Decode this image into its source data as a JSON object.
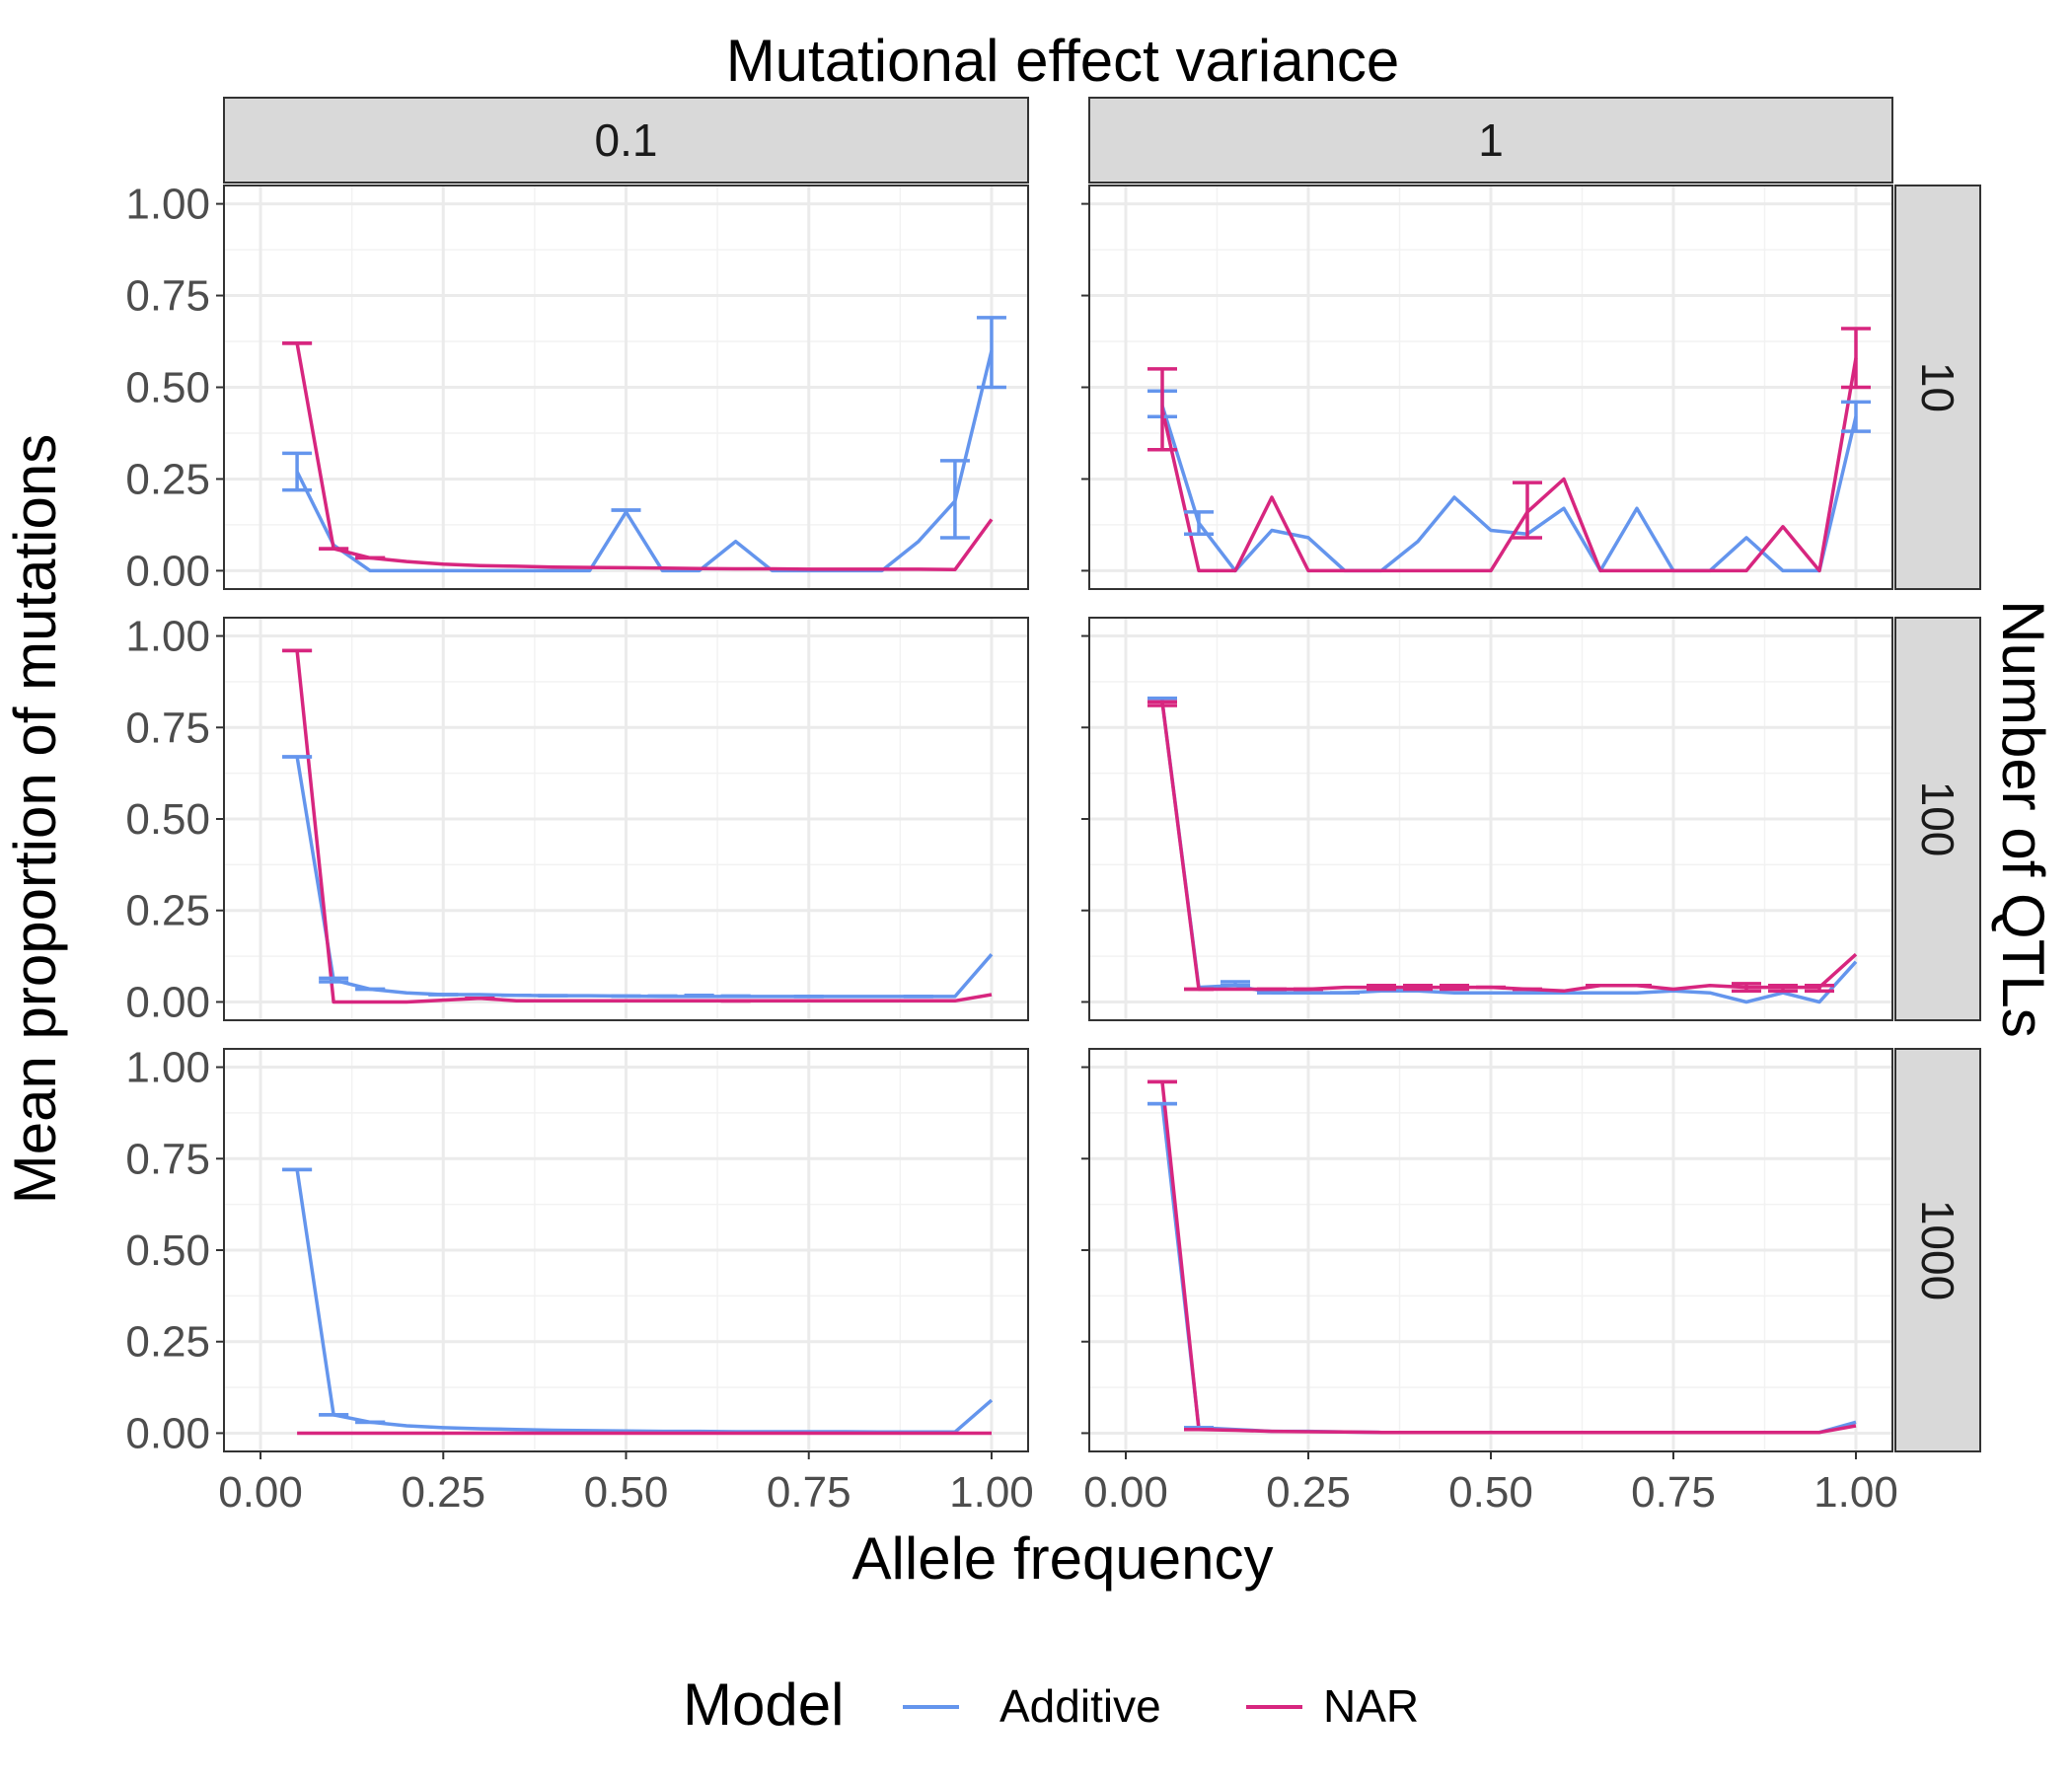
{
  "chart_data": {
    "type": "line",
    "title": "Mutational effect variance",
    "xlabel": "Allele frequency",
    "ylabel": "Mean proportion of mutations",
    "facet_row_label": "Number of QTLs",
    "col_strips": [
      "0.1",
      "1"
    ],
    "row_strips": [
      "10",
      "100",
      "1000"
    ],
    "xlim": [
      0,
      1
    ],
    "ylim": [
      0,
      1
    ],
    "x_ticks": [
      "0.00",
      "0.25",
      "0.50",
      "0.75",
      "1.00"
    ],
    "y_ticks": [
      "0.00",
      "0.25",
      "0.50",
      "0.75",
      "1.00"
    ],
    "grid": true,
    "legend": {
      "title": "Model",
      "position": "bottom",
      "entries": [
        {
          "name": "Additive",
          "color": "#6495ED"
        },
        {
          "name": "NAR",
          "color": "#D7267F"
        }
      ]
    },
    "panels": [
      {
        "col": "0.1",
        "row": "10",
        "series": [
          {
            "name": "Additive",
            "color": "#6495ED",
            "x": [
              0.05,
              0.1,
              0.15,
              0.2,
              0.25,
              0.3,
              0.35,
              0.4,
              0.45,
              0.5,
              0.55,
              0.6,
              0.65,
              0.7,
              0.75,
              0.8,
              0.85,
              0.9,
              0.95,
              1.0
            ],
            "y": [
              0.27,
              0.07,
              0.0,
              0.0,
              0.0,
              0.0,
              0.0,
              0.0,
              0.0,
              0.16,
              0.0,
              0.0,
              0.08,
              0.0,
              0.0,
              0.0,
              0.0,
              0.08,
              0.19,
              0.6
            ]
          },
          {
            "name": "NAR",
            "color": "#D7267F",
            "x": [
              0.05,
              0.1,
              0.15,
              0.2,
              0.25,
              0.3,
              0.35,
              0.4,
              0.45,
              0.5,
              0.55,
              0.6,
              0.65,
              0.7,
              0.75,
              0.8,
              0.85,
              0.9,
              0.95,
              1.0
            ],
            "y": [
              0.62,
              0.06,
              0.035,
              0.025,
              0.018,
              0.014,
              0.012,
              0.01,
              0.009,
              0.008,
              0.007,
              0.006,
              0.005,
              0.005,
              0.004,
              0.004,
              0.004,
              0.004,
              0.003,
              0.14
            ]
          }
        ],
        "errorbars": [
          {
            "color": "#6495ED",
            "x": 0.05,
            "lo": 0.22,
            "hi": 0.32
          },
          {
            "color": "#6495ED",
            "x": 0.5,
            "lo": 0.165,
            "hi": 0.165
          },
          {
            "color": "#6495ED",
            "x": 0.95,
            "lo": 0.09,
            "hi": 0.3
          },
          {
            "color": "#6495ED",
            "x": 1.0,
            "lo": 0.5,
            "hi": 0.69
          },
          {
            "color": "#D7267F",
            "x": 0.05,
            "lo": 0.62,
            "hi": 0.62
          },
          {
            "color": "#D7267F",
            "x": 0.1,
            "lo": 0.06,
            "hi": 0.06
          },
          {
            "color": "#D7267F",
            "x": 0.15,
            "lo": 0.035,
            "hi": 0.035
          }
        ]
      },
      {
        "col": "1",
        "row": "10",
        "series": [
          {
            "name": "Additive",
            "color": "#6495ED",
            "x": [
              0.05,
              0.1,
              0.15,
              0.2,
              0.25,
              0.3,
              0.35,
              0.4,
              0.45,
              0.5,
              0.55,
              0.6,
              0.65,
              0.7,
              0.75,
              0.8,
              0.85,
              0.9,
              0.95,
              1.0
            ],
            "y": [
              0.45,
              0.13,
              0.0,
              0.11,
              0.09,
              0.0,
              0.0,
              0.08,
              0.2,
              0.11,
              0.1,
              0.17,
              0.0,
              0.17,
              0.0,
              0.0,
              0.09,
              0.0,
              0.0,
              0.42
            ]
          },
          {
            "name": "NAR",
            "color": "#D7267F",
            "x": [
              0.05,
              0.1,
              0.15,
              0.2,
              0.25,
              0.3,
              0.35,
              0.4,
              0.45,
              0.5,
              0.55,
              0.6,
              0.65,
              0.7,
              0.75,
              0.8,
              0.85,
              0.9,
              0.95,
              1.0
            ],
            "y": [
              0.44,
              0.0,
              0.0,
              0.2,
              0.0,
              0.0,
              0.0,
              0.0,
              0.0,
              0.0,
              0.16,
              0.25,
              0.0,
              0.0,
              0.0,
              0.0,
              0.0,
              0.12,
              0.0,
              0.58
            ]
          }
        ],
        "errorbars": [
          {
            "color": "#6495ED",
            "x": 0.05,
            "lo": 0.42,
            "hi": 0.49
          },
          {
            "color": "#6495ED",
            "x": 0.1,
            "lo": 0.1,
            "hi": 0.16
          },
          {
            "color": "#6495ED",
            "x": 1.0,
            "lo": 0.38,
            "hi": 0.46
          },
          {
            "color": "#D7267F",
            "x": 0.05,
            "lo": 0.33,
            "hi": 0.55
          },
          {
            "color": "#D7267F",
            "x": 0.55,
            "lo": 0.09,
            "hi": 0.24
          },
          {
            "color": "#D7267F",
            "x": 1.0,
            "lo": 0.5,
            "hi": 0.66
          }
        ]
      },
      {
        "col": "0.1",
        "row": "100",
        "series": [
          {
            "name": "Additive",
            "color": "#6495ED",
            "x": [
              0.05,
              0.1,
              0.15,
              0.2,
              0.25,
              0.3,
              0.35,
              0.4,
              0.45,
              0.5,
              0.55,
              0.6,
              0.65,
              0.7,
              0.75,
              0.8,
              0.85,
              0.9,
              0.95,
              1.0
            ],
            "y": [
              0.67,
              0.06,
              0.035,
              0.025,
              0.02,
              0.02,
              0.018,
              0.017,
              0.017,
              0.016,
              0.015,
              0.015,
              0.015,
              0.015,
              0.015,
              0.015,
              0.015,
              0.015,
              0.015,
              0.13
            ]
          },
          {
            "name": "NAR",
            "color": "#D7267F",
            "x": [
              0.05,
              0.1,
              0.15,
              0.2,
              0.25,
              0.3,
              0.35,
              0.4,
              0.45,
              0.5,
              0.55,
              0.6,
              0.65,
              0.7,
              0.75,
              0.8,
              0.85,
              0.9,
              0.95,
              1.0
            ],
            "y": [
              0.96,
              0.0,
              0.0,
              0.0,
              0.005,
              0.01,
              0.003,
              0.003,
              0.003,
              0.003,
              0.003,
              0.003,
              0.003,
              0.003,
              0.003,
              0.003,
              0.003,
              0.003,
              0.003,
              0.02
            ]
          }
        ],
        "errorbars": [
          {
            "color": "#6495ED",
            "x": 0.05,
            "lo": 0.67,
            "hi": 0.67
          },
          {
            "color": "#6495ED",
            "x": 0.1,
            "lo": 0.055,
            "hi": 0.065
          },
          {
            "color": "#6495ED",
            "x": 0.15,
            "lo": 0.035,
            "hi": 0.035
          },
          {
            "color": "#6495ED",
            "x": 0.25,
            "lo": 0.02,
            "hi": 0.02
          },
          {
            "color": "#6495ED",
            "x": 0.35,
            "lo": 0.018,
            "hi": 0.018
          },
          {
            "color": "#6495ED",
            "x": 0.4,
            "lo": 0.017,
            "hi": 0.017
          },
          {
            "color": "#6495ED",
            "x": 0.5,
            "lo": 0.016,
            "hi": 0.016
          },
          {
            "color": "#6495ED",
            "x": 0.55,
            "lo": 0.016,
            "hi": 0.016
          },
          {
            "color": "#6495ED",
            "x": 0.6,
            "lo": 0.018,
            "hi": 0.018
          },
          {
            "color": "#6495ED",
            "x": 0.65,
            "lo": 0.016,
            "hi": 0.016
          },
          {
            "color": "#6495ED",
            "x": 0.75,
            "lo": 0.015,
            "hi": 0.015
          },
          {
            "color": "#6495ED",
            "x": 0.9,
            "lo": 0.015,
            "hi": 0.015
          },
          {
            "color": "#D7267F",
            "x": 0.05,
            "lo": 0.96,
            "hi": 0.96
          },
          {
            "color": "#D7267F",
            "x": 0.3,
            "lo": 0.01,
            "hi": 0.01
          },
          {
            "color": "#D7267F",
            "x": 0.65,
            "lo": 0.003,
            "hi": 0.003
          }
        ]
      },
      {
        "col": "1",
        "row": "100",
        "series": [
          {
            "name": "Additive",
            "color": "#6495ED",
            "x": [
              0.05,
              0.1,
              0.15,
              0.2,
              0.25,
              0.3,
              0.35,
              0.4,
              0.45,
              0.5,
              0.55,
              0.6,
              0.65,
              0.7,
              0.75,
              0.8,
              0.85,
              0.9,
              0.95,
              1.0
            ],
            "y": [
              0.82,
              0.04,
              0.045,
              0.025,
              0.025,
              0.025,
              0.03,
              0.03,
              0.025,
              0.025,
              0.025,
              0.025,
              0.025,
              0.025,
              0.03,
              0.025,
              0.0,
              0.025,
              0.0,
              0.11
            ]
          },
          {
            "name": "NAR",
            "color": "#D7267F",
            "x": [
              0.05,
              0.1,
              0.15,
              0.2,
              0.25,
              0.3,
              0.35,
              0.4,
              0.45,
              0.5,
              0.55,
              0.6,
              0.65,
              0.7,
              0.75,
              0.8,
              0.85,
              0.9,
              0.95,
              1.0
            ],
            "y": [
              0.82,
              0.035,
              0.035,
              0.035,
              0.035,
              0.04,
              0.04,
              0.04,
              0.04,
              0.04,
              0.035,
              0.03,
              0.045,
              0.045,
              0.035,
              0.045,
              0.04,
              0.04,
              0.04,
              0.13
            ]
          }
        ],
        "errorbars": [
          {
            "color": "#6495ED",
            "x": 0.05,
            "lo": 0.82,
            "hi": 0.83
          },
          {
            "color": "#6495ED",
            "x": 0.15,
            "lo": 0.045,
            "hi": 0.055
          },
          {
            "color": "#6495ED",
            "x": 0.2,
            "lo": 0.025,
            "hi": 0.025
          },
          {
            "color": "#6495ED",
            "x": 0.3,
            "lo": 0.025,
            "hi": 0.025
          },
          {
            "color": "#D7267F",
            "x": 0.05,
            "lo": 0.81,
            "hi": 0.82
          },
          {
            "color": "#D7267F",
            "x": 0.1,
            "lo": 0.035,
            "hi": 0.035
          },
          {
            "color": "#D7267F",
            "x": 0.2,
            "lo": 0.035,
            "hi": 0.035
          },
          {
            "color": "#D7267F",
            "x": 0.25,
            "lo": 0.035,
            "hi": 0.035
          },
          {
            "color": "#D7267F",
            "x": 0.35,
            "lo": 0.035,
            "hi": 0.045
          },
          {
            "color": "#D7267F",
            "x": 0.4,
            "lo": 0.035,
            "hi": 0.045
          },
          {
            "color": "#D7267F",
            "x": 0.45,
            "lo": 0.035,
            "hi": 0.045
          },
          {
            "color": "#D7267F",
            "x": 0.5,
            "lo": 0.04,
            "hi": 0.04
          },
          {
            "color": "#D7267F",
            "x": 0.55,
            "lo": 0.035,
            "hi": 0.035
          },
          {
            "color": "#D7267F",
            "x": 0.65,
            "lo": 0.045,
            "hi": 0.045
          },
          {
            "color": "#D7267F",
            "x": 0.7,
            "lo": 0.045,
            "hi": 0.045
          },
          {
            "color": "#D7267F",
            "x": 0.85,
            "lo": 0.03,
            "hi": 0.05
          },
          {
            "color": "#D7267F",
            "x": 0.9,
            "lo": 0.03,
            "hi": 0.045
          },
          {
            "color": "#D7267F",
            "x": 0.95,
            "lo": 0.03,
            "hi": 0.045
          }
        ]
      },
      {
        "col": "0.1",
        "row": "1000",
        "series": [
          {
            "name": "Additive",
            "color": "#6495ED",
            "x": [
              0.05,
              0.1,
              0.15,
              0.2,
              0.25,
              0.3,
              0.35,
              0.4,
              0.45,
              0.5,
              0.55,
              0.6,
              0.65,
              0.7,
              0.75,
              0.8,
              0.85,
              0.9,
              0.95,
              1.0
            ],
            "y": [
              0.72,
              0.05,
              0.03,
              0.02,
              0.015,
              0.012,
              0.01,
              0.008,
              0.007,
              0.006,
              0.005,
              0.005,
              0.004,
              0.004,
              0.004,
              0.004,
              0.003,
              0.003,
              0.003,
              0.09
            ]
          },
          {
            "name": "NAR",
            "color": "#D7267F",
            "x": [
              0.05,
              0.1,
              0.15,
              0.2,
              0.25,
              0.3,
              0.35,
              0.4,
              0.45,
              0.5,
              0.55,
              0.6,
              0.65,
              0.7,
              0.75,
              0.8,
              0.85,
              0.9,
              0.95,
              1.0
            ],
            "y": [
              0.0,
              0.0,
              0.0,
              0.0,
              0.0,
              0.0,
              0.0,
              0.0,
              0.0,
              0.0,
              0.0,
              0.0,
              0.0,
              0.0,
              0.0,
              0.0,
              0.0,
              0.0,
              0.0,
              0.0
            ]
          }
        ],
        "errorbars": [
          {
            "color": "#6495ED",
            "x": 0.05,
            "lo": 0.72,
            "hi": 0.72
          },
          {
            "color": "#6495ED",
            "x": 0.1,
            "lo": 0.05,
            "hi": 0.05
          },
          {
            "color": "#6495ED",
            "x": 0.15,
            "lo": 0.03,
            "hi": 0.03
          }
        ]
      },
      {
        "col": "1",
        "row": "1000",
        "series": [
          {
            "name": "Additive",
            "color": "#6495ED",
            "x": [
              0.05,
              0.1,
              0.15,
              0.2,
              0.25,
              0.3,
              0.35,
              0.4,
              0.45,
              0.5,
              0.55,
              0.6,
              0.65,
              0.7,
              0.75,
              0.8,
              0.85,
              0.9,
              0.95,
              1.0
            ],
            "y": [
              0.9,
              0.015,
              0.01,
              0.005,
              0.005,
              0.003,
              0.002,
              0.002,
              0.002,
              0.002,
              0.002,
              0.002,
              0.002,
              0.002,
              0.002,
              0.002,
              0.002,
              0.002,
              0.002,
              0.03
            ]
          },
          {
            "name": "NAR",
            "color": "#D7267F",
            "x": [
              0.05,
              0.1,
              0.15,
              0.2,
              0.25,
              0.3,
              0.35,
              0.4,
              0.45,
              0.5,
              0.55,
              0.6,
              0.65,
              0.7,
              0.75,
              0.8,
              0.85,
              0.9,
              0.95,
              1.0
            ],
            "y": [
              0.96,
              0.01,
              0.008,
              0.005,
              0.004,
              0.003,
              0.002,
              0.002,
              0.002,
              0.002,
              0.002,
              0.002,
              0.002,
              0.002,
              0.002,
              0.002,
              0.002,
              0.002,
              0.002,
              0.02
            ]
          }
        ],
        "errorbars": [
          {
            "color": "#6495ED",
            "x": 0.05,
            "lo": 0.9,
            "hi": 0.9
          },
          {
            "color": "#6495ED",
            "x": 0.1,
            "lo": 0.015,
            "hi": 0.015
          },
          {
            "color": "#D7267F",
            "x": 0.05,
            "lo": 0.96,
            "hi": 0.96
          },
          {
            "color": "#D7267F",
            "x": 0.1,
            "lo": 0.01,
            "hi": 0.01
          }
        ]
      }
    ]
  }
}
